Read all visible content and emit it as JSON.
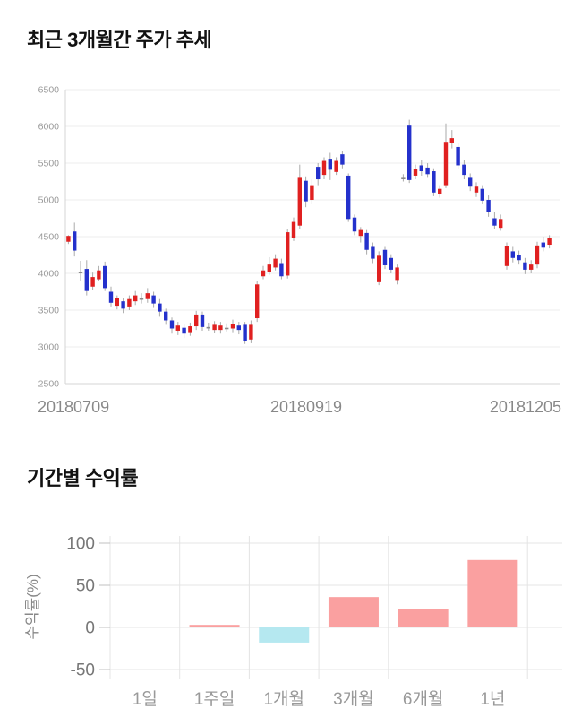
{
  "price_chart": {
    "title": "최근 3개월간 주가 추세"
  },
  "returns_chart": {
    "title": "기간별 수익률"
  },
  "chart_data": [
    {
      "type": "candlestick",
      "title": "최근 3개월간 주가 추세",
      "ylim": [
        2500,
        6500
      ],
      "y_ticks": [
        6500,
        6000,
        5500,
        5000,
        4500,
        4000,
        3500,
        3000,
        2500
      ],
      "x_tick_labels": [
        "20180709",
        "20180919",
        "20181205"
      ],
      "grid": true,
      "legend": "none",
      "colors": {
        "bullish": "#e02020",
        "bearish": "#2431cc",
        "neutral": "#8a8a8a",
        "wick": "#aaaaaa",
        "grid": "#ececec",
        "axis": "#d5d5d5",
        "y_tick_text": "#999999",
        "x_tick_text": "#888888"
      },
      "candles_format": [
        "direction(u=up/red,d=down/blue,n=doji)",
        "body_low",
        "body_high",
        "low",
        "high"
      ],
      "candles": [
        [
          "u",
          4430,
          4510,
          4400,
          4520
        ],
        [
          "d",
          4310,
          4570,
          4230,
          4690
        ],
        [
          "n",
          4020,
          4020,
          3890,
          4170
        ],
        [
          "d",
          3760,
          4060,
          3700,
          4180
        ],
        [
          "u",
          3820,
          3950,
          3780,
          4010
        ],
        [
          "u",
          3920,
          4040,
          3900,
          4100
        ],
        [
          "d",
          3800,
          4100,
          3760,
          4160
        ],
        [
          "d",
          3600,
          3750,
          3550,
          3820
        ],
        [
          "u",
          3560,
          3660,
          3510,
          3700
        ],
        [
          "d",
          3520,
          3620,
          3460,
          3660
        ],
        [
          "u",
          3550,
          3650,
          3500,
          3700
        ],
        [
          "u",
          3620,
          3700,
          3570,
          3760
        ],
        [
          "n",
          3660,
          3660,
          3590,
          3730
        ],
        [
          "u",
          3650,
          3730,
          3600,
          3800
        ],
        [
          "d",
          3590,
          3700,
          3530,
          3750
        ],
        [
          "d",
          3480,
          3590,
          3410,
          3650
        ],
        [
          "d",
          3360,
          3480,
          3300,
          3520
        ],
        [
          "d",
          3250,
          3360,
          3180,
          3400
        ],
        [
          "u",
          3220,
          3290,
          3160,
          3340
        ],
        [
          "d",
          3180,
          3260,
          3120,
          3310
        ],
        [
          "u",
          3200,
          3280,
          3150,
          3330
        ],
        [
          "u",
          3280,
          3440,
          3230,
          3490
        ],
        [
          "d",
          3270,
          3440,
          3220,
          3480
        ],
        [
          "n",
          3270,
          3270,
          3220,
          3330
        ],
        [
          "u",
          3230,
          3300,
          3190,
          3350
        ],
        [
          "u",
          3230,
          3290,
          3180,
          3340
        ],
        [
          "n",
          3260,
          3260,
          3210,
          3320
        ],
        [
          "u",
          3250,
          3310,
          3200,
          3370
        ],
        [
          "d",
          3230,
          3290,
          3170,
          3340
        ],
        [
          "d",
          3080,
          3300,
          3040,
          3340
        ],
        [
          "u",
          3100,
          3300,
          3050,
          3360
        ],
        [
          "u",
          3390,
          3850,
          3340,
          3900
        ],
        [
          "u",
          3960,
          4040,
          3920,
          4100
        ],
        [
          "u",
          4020,
          4120,
          3980,
          4220
        ],
        [
          "u",
          4080,
          4200,
          4040,
          4260
        ],
        [
          "d",
          3960,
          4140,
          3920,
          4200
        ],
        [
          "u",
          3970,
          4560,
          3930,
          4600
        ],
        [
          "u",
          4480,
          4700,
          4440,
          4760
        ],
        [
          "u",
          4650,
          5300,
          4600,
          5480
        ],
        [
          "d",
          4980,
          5260,
          4900,
          5320
        ],
        [
          "u",
          5000,
          5200,
          4940,
          5280
        ],
        [
          "d",
          5280,
          5450,
          5200,
          5500
        ],
        [
          "u",
          5340,
          5530,
          5280,
          5580
        ],
        [
          "d",
          5410,
          5560,
          5270,
          5640
        ],
        [
          "u",
          5380,
          5530,
          5340,
          5580
        ],
        [
          "d",
          5480,
          5620,
          5430,
          5660
        ],
        [
          "d",
          4740,
          5330,
          4700,
          5360
        ],
        [
          "d",
          4570,
          4760,
          4520,
          4800
        ],
        [
          "u",
          4510,
          4590,
          4420,
          4630
        ],
        [
          "d",
          4320,
          4550,
          4260,
          4590
        ],
        [
          "d",
          4200,
          4360,
          4140,
          4420
        ],
        [
          "u",
          3880,
          4240,
          3840,
          4300
        ],
        [
          "d",
          4110,
          4320,
          4060,
          4360
        ],
        [
          "d",
          4050,
          4210,
          4000,
          4260
        ],
        [
          "u",
          3910,
          4080,
          3850,
          4120
        ],
        [
          "n",
          5300,
          5300,
          5250,
          5350
        ],
        [
          "d",
          5270,
          6010,
          5230,
          6090
        ],
        [
          "u",
          5330,
          5420,
          5280,
          5480
        ],
        [
          "d",
          5390,
          5470,
          5330,
          5540
        ],
        [
          "d",
          5350,
          5440,
          5300,
          5500
        ],
        [
          "d",
          5100,
          5390,
          5050,
          5430
        ],
        [
          "u",
          5080,
          5150,
          5030,
          5200
        ],
        [
          "u",
          5200,
          5790,
          5160,
          6040
        ],
        [
          "u",
          5780,
          5840,
          5700,
          5950
        ],
        [
          "d",
          5470,
          5720,
          5420,
          5780
        ],
        [
          "d",
          5340,
          5480,
          5280,
          5540
        ],
        [
          "d",
          5180,
          5300,
          5120,
          5360
        ],
        [
          "u",
          5100,
          5180,
          5040,
          5240
        ],
        [
          "d",
          4990,
          5150,
          4940,
          5200
        ],
        [
          "d",
          4830,
          5000,
          4770,
          5060
        ],
        [
          "d",
          4650,
          4750,
          4600,
          4830
        ],
        [
          "u",
          4620,
          4740,
          4580,
          4800
        ],
        [
          "u",
          4100,
          4370,
          4050,
          4420
        ],
        [
          "d",
          4210,
          4300,
          4150,
          4360
        ],
        [
          "d",
          4180,
          4250,
          4120,
          4310
        ],
        [
          "d",
          4050,
          4150,
          3990,
          4210
        ],
        [
          "u",
          4050,
          4120,
          4000,
          4180
        ],
        [
          "u",
          4120,
          4380,
          4070,
          4430
        ],
        [
          "d",
          4350,
          4420,
          4300,
          4500
        ],
        [
          "u",
          4390,
          4480,
          4340,
          4520
        ]
      ]
    },
    {
      "type": "bar",
      "title": "기간별 수익률",
      "ylabel": "수익률(%)",
      "categories": [
        "1일",
        "1주일",
        "1개월",
        "3개월",
        "6개월",
        "1년"
      ],
      "values": [
        0,
        3,
        -18,
        36,
        22,
        80
      ],
      "y_ticks": [
        100,
        50,
        0,
        -50
      ],
      "ylim": [
        -66,
        108
      ],
      "grid": true,
      "legend": "none",
      "colors": {
        "positive": "#faa0a0",
        "negative": "#b5e8f0",
        "grid": "#e4e4e4",
        "tick": "#c0c0c0",
        "y_tick_text": "#777777",
        "category_text": "#999999",
        "ylabel_text": "#888888"
      }
    }
  ]
}
